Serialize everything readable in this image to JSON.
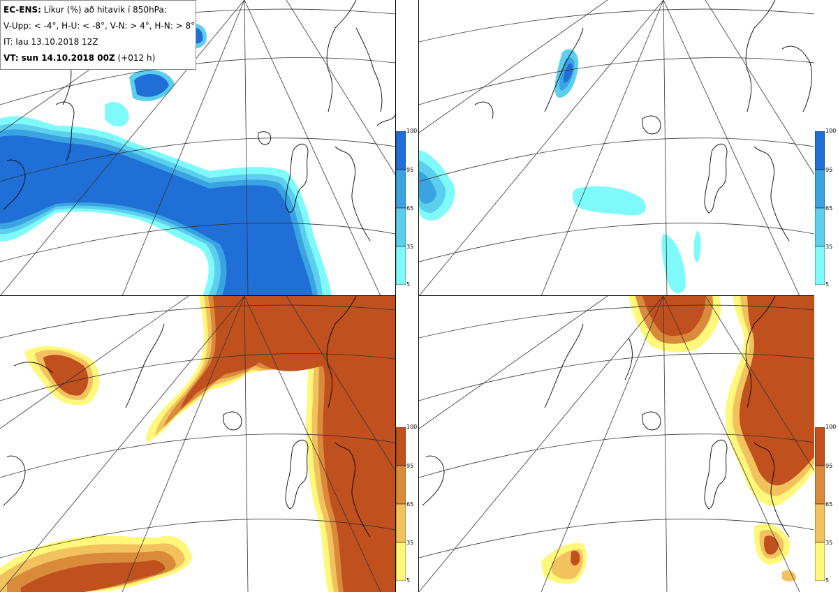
{
  "header": {
    "product": "EC-ENS:",
    "title_rest": "Líkur (%) að hitavik í 850hPa:",
    "categories_line": "V-Upp: < -4°, H-U: < -8°, V-N: > 4°, H-N: > 8°",
    "issue_time": "IT: lau 13.10.2018 12Z",
    "valid_label": "VT: sun 14.10.2018 00Z",
    "valid_offset": "(+012 h)"
  },
  "legend_ticks": [
    "100",
    "95",
    "65",
    "35",
    "5"
  ],
  "colors": {
    "cold_scale": [
      "#7ffafa",
      "#5ccfee",
      "#3aa4e2",
      "#1f6fd6"
    ],
    "warm_scale": [
      "#fff87a",
      "#f2c25e",
      "#d98a3a",
      "#c0501e"
    ],
    "coast": "#000000",
    "grid": "#333333"
  },
  "panels": [
    {
      "name": "V-Upp",
      "scale": "cold"
    },
    {
      "name": "H-U",
      "scale": "cold"
    },
    {
      "name": "V-N",
      "scale": "warm"
    },
    {
      "name": "H-N",
      "scale": "warm"
    }
  ]
}
